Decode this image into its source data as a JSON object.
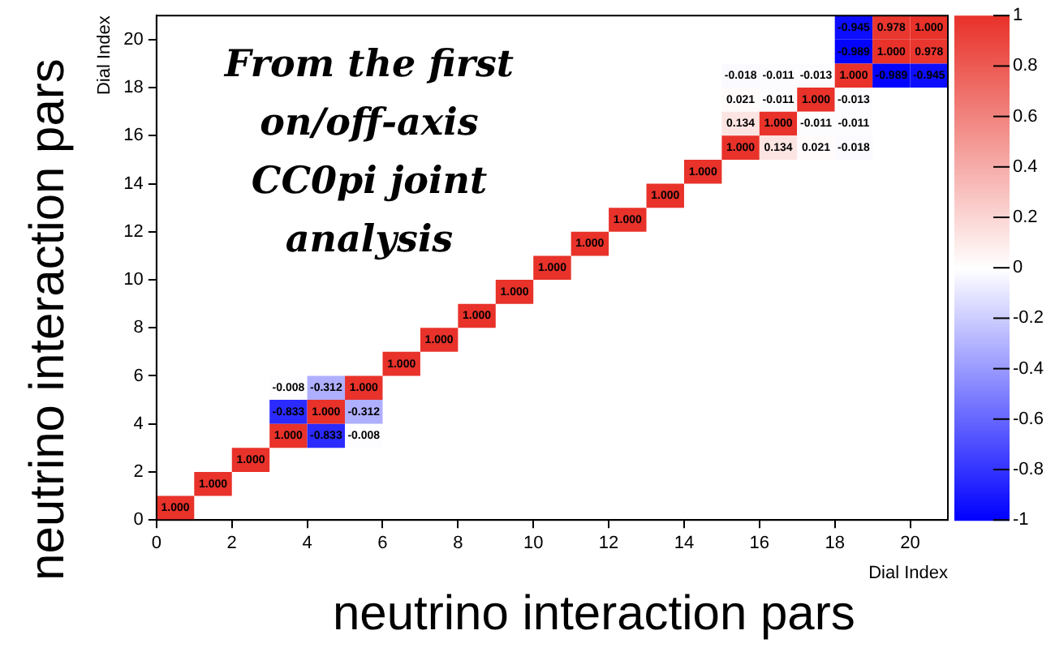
{
  "chart_data": {
    "type": "heatmap",
    "xlabel": "Dial Index",
    "ylabel": "Dial Index",
    "annotations": [
      "neutrino interaction pars",
      "neutrino interaction pars",
      "From the first on/off-axis CC0pi joint analysis"
    ],
    "xlim": [
      0,
      21
    ],
    "xticks": [
      0,
      2,
      4,
      6,
      8,
      10,
      12,
      14,
      16,
      18,
      20
    ],
    "ylim": [
      0,
      21
    ],
    "yticks": [
      0,
      2,
      4,
      6,
      8,
      10,
      12,
      14,
      16,
      18,
      20
    ],
    "clim": [
      -1,
      1
    ],
    "cticks": [
      -1,
      -0.8,
      -0.6,
      -0.4,
      -0.2,
      0,
      0.2,
      0.4,
      0.6,
      0.8,
      1
    ],
    "cells": [
      [
        null,
        null,
        null,
        null,
        null,
        null,
        null,
        null,
        null,
        null,
        null,
        null,
        null,
        null,
        null,
        null,
        null,
        null,
        -0.945,
        0.978,
        1
      ],
      [
        null,
        null,
        null,
        null,
        null,
        null,
        null,
        null,
        null,
        null,
        null,
        null,
        null,
        null,
        null,
        null,
        null,
        null,
        -0.989,
        1,
        0.978
      ],
      [
        null,
        null,
        null,
        null,
        null,
        null,
        null,
        null,
        null,
        null,
        null,
        null,
        null,
        null,
        null,
        -0.018,
        -0.011,
        -0.013,
        1,
        -0.989,
        -0.945
      ],
      [
        null,
        null,
        null,
        null,
        null,
        null,
        null,
        null,
        null,
        null,
        null,
        null,
        null,
        null,
        null,
        0.021,
        -0.011,
        1,
        -0.013,
        null,
        null
      ],
      [
        null,
        null,
        null,
        null,
        null,
        null,
        null,
        null,
        null,
        null,
        null,
        null,
        null,
        null,
        null,
        0.134,
        1,
        -0.011,
        -0.011,
        null,
        null
      ],
      [
        null,
        null,
        null,
        null,
        null,
        null,
        null,
        null,
        null,
        null,
        null,
        null,
        null,
        null,
        null,
        1,
        0.134,
        0.021,
        -0.018,
        null,
        null
      ],
      [
        null,
        null,
        null,
        null,
        null,
        null,
        null,
        null,
        null,
        null,
        null,
        null,
        null,
        null,
        1,
        null,
        null,
        null,
        null,
        null,
        null
      ],
      [
        null,
        null,
        null,
        null,
        null,
        null,
        null,
        null,
        null,
        null,
        null,
        null,
        null,
        1,
        null,
        null,
        null,
        null,
        null,
        null,
        null
      ],
      [
        null,
        null,
        null,
        null,
        null,
        null,
        null,
        null,
        null,
        null,
        null,
        null,
        1,
        null,
        null,
        null,
        null,
        null,
        null,
        null,
        null
      ],
      [
        null,
        null,
        null,
        null,
        null,
        null,
        null,
        null,
        null,
        null,
        null,
        1,
        null,
        null,
        null,
        null,
        null,
        null,
        null,
        null,
        null
      ],
      [
        null,
        null,
        null,
        null,
        null,
        null,
        null,
        null,
        null,
        null,
        1,
        null,
        null,
        null,
        null,
        null,
        null,
        null,
        null,
        null,
        null
      ],
      [
        null,
        null,
        null,
        null,
        null,
        null,
        null,
        null,
        null,
        1,
        null,
        null,
        null,
        null,
        null,
        null,
        null,
        null,
        null,
        null,
        null
      ],
      [
        null,
        null,
        null,
        null,
        null,
        null,
        null,
        null,
        1,
        null,
        null,
        null,
        null,
        null,
        null,
        null,
        null,
        null,
        null,
        null,
        null
      ],
      [
        null,
        null,
        null,
        null,
        null,
        null,
        null,
        1,
        null,
        null,
        null,
        null,
        null,
        null,
        null,
        null,
        null,
        null,
        null,
        null,
        null
      ],
      [
        null,
        null,
        null,
        null,
        null,
        null,
        1,
        null,
        null,
        null,
        null,
        null,
        null,
        null,
        null,
        null,
        null,
        null,
        null,
        null,
        null
      ],
      [
        null,
        null,
        null,
        -0.008,
        -0.312,
        1,
        null,
        null,
        null,
        null,
        null,
        null,
        null,
        null,
        null,
        null,
        null,
        null,
        null,
        null,
        null
      ],
      [
        null,
        null,
        null,
        -0.833,
        1,
        -0.312,
        null,
        null,
        null,
        null,
        null,
        null,
        null,
        null,
        null,
        null,
        null,
        null,
        null,
        null,
        null
      ],
      [
        null,
        null,
        null,
        1,
        -0.833,
        -0.008,
        null,
        null,
        null,
        null,
        null,
        null,
        null,
        null,
        null,
        null,
        null,
        null,
        null,
        null,
        null
      ],
      [
        null,
        null,
        1,
        null,
        null,
        null,
        null,
        null,
        null,
        null,
        null,
        null,
        null,
        null,
        null,
        null,
        null,
        null,
        null,
        null,
        null
      ],
      [
        null,
        1,
        null,
        null,
        null,
        null,
        null,
        null,
        null,
        null,
        null,
        null,
        null,
        null,
        null,
        null,
        null,
        null,
        null,
        null,
        null
      ],
      [
        1,
        null,
        null,
        null,
        null,
        null,
        null,
        null,
        null,
        null,
        null,
        null,
        null,
        null,
        null,
        null,
        null,
        null,
        null,
        null,
        null
      ]
    ],
    "cell_labels": [
      [
        null,
        null,
        null,
        null,
        null,
        null,
        null,
        null,
        null,
        null,
        null,
        null,
        null,
        null,
        null,
        null,
        null,
        null,
        "-0.945",
        "0.978",
        "1.000"
      ],
      [
        null,
        null,
        null,
        null,
        null,
        null,
        null,
        null,
        null,
        null,
        null,
        null,
        null,
        null,
        null,
        null,
        null,
        null,
        "-0.989",
        "1.000",
        "0.978"
      ],
      [
        null,
        null,
        null,
        null,
        null,
        null,
        null,
        null,
        null,
        null,
        null,
        null,
        null,
        null,
        null,
        "-0.018",
        "-0.011",
        "-0.013",
        "1.000",
        "-0.989",
        "-0.945"
      ],
      [
        null,
        null,
        null,
        null,
        null,
        null,
        null,
        null,
        null,
        null,
        null,
        null,
        null,
        null,
        null,
        "0.021",
        "-0.011",
        "1.000",
        "-0.013",
        null,
        null
      ],
      [
        null,
        null,
        null,
        null,
        null,
        null,
        null,
        null,
        null,
        null,
        null,
        null,
        null,
        null,
        null,
        "0.134",
        "1.000",
        "-0.011",
        "-0.011",
        null,
        null
      ],
      [
        null,
        null,
        null,
        null,
        null,
        null,
        null,
        null,
        null,
        null,
        null,
        null,
        null,
        null,
        null,
        "1.000",
        "0.134",
        "0.021",
        "-0.018",
        null,
        null
      ],
      [
        null,
        null,
        null,
        null,
        null,
        null,
        null,
        null,
        null,
        null,
        null,
        null,
        null,
        null,
        "1.000",
        null,
        null,
        null,
        null,
        null,
        null
      ],
      [
        null,
        null,
        null,
        null,
        null,
        null,
        null,
        null,
        null,
        null,
        null,
        null,
        null,
        "1.000",
        null,
        null,
        null,
        null,
        null,
        null,
        null
      ],
      [
        null,
        null,
        null,
        null,
        null,
        null,
        null,
        null,
        null,
        null,
        null,
        null,
        "1.000",
        null,
        null,
        null,
        null,
        null,
        null,
        null,
        null
      ],
      [
        null,
        null,
        null,
        null,
        null,
        null,
        null,
        null,
        null,
        null,
        null,
        "1.000",
        null,
        null,
        null,
        null,
        null,
        null,
        null,
        null,
        null
      ],
      [
        null,
        null,
        null,
        null,
        null,
        null,
        null,
        null,
        null,
        null,
        "1.000",
        null,
        null,
        null,
        null,
        null,
        null,
        null,
        null,
        null,
        null
      ],
      [
        null,
        null,
        null,
        null,
        null,
        null,
        null,
        null,
        null,
        "1.000",
        null,
        null,
        null,
        null,
        null,
        null,
        null,
        null,
        null,
        null,
        null
      ],
      [
        null,
        null,
        null,
        null,
        null,
        null,
        null,
        null,
        "1.000",
        null,
        null,
        null,
        null,
        null,
        null,
        null,
        null,
        null,
        null,
        null,
        null
      ],
      [
        null,
        null,
        null,
        null,
        null,
        null,
        null,
        "1.000",
        null,
        null,
        null,
        null,
        null,
        null,
        null,
        null,
        null,
        null,
        null,
        null,
        null
      ],
      [
        null,
        null,
        null,
        null,
        null,
        null,
        "1.000",
        null,
        null,
        null,
        null,
        null,
        null,
        null,
        null,
        null,
        null,
        null,
        null,
        null,
        null
      ],
      [
        null,
        null,
        null,
        "-0.008",
        "-0.312",
        "1.000",
        null,
        null,
        null,
        null,
        null,
        null,
        null,
        null,
        null,
        null,
        null,
        null,
        null,
        null,
        null
      ],
      [
        null,
        null,
        null,
        "-0.833",
        "1.000",
        "-0.312",
        null,
        null,
        null,
        null,
        null,
        null,
        null,
        null,
        null,
        null,
        null,
        null,
        null,
        null,
        null
      ],
      [
        null,
        null,
        null,
        "1.000",
        "-0.833",
        "-0.008",
        null,
        null,
        null,
        null,
        null,
        null,
        null,
        null,
        null,
        null,
        null,
        null,
        null,
        null,
        null
      ],
      [
        null,
        null,
        "1.000",
        null,
        null,
        null,
        null,
        null,
        null,
        null,
        null,
        null,
        null,
        null,
        null,
        null,
        null,
        null,
        null,
        null,
        null
      ],
      [
        null,
        "1.000",
        null,
        null,
        null,
        null,
        null,
        null,
        null,
        null,
        null,
        null,
        null,
        null,
        null,
        null,
        null,
        null,
        null,
        null,
        null
      ],
      [
        "1.000",
        null,
        null,
        null,
        null,
        null,
        null,
        null,
        null,
        null,
        null,
        null,
        null,
        null,
        null,
        null,
        null,
        null,
        null,
        null,
        null
      ]
    ]
  }
}
